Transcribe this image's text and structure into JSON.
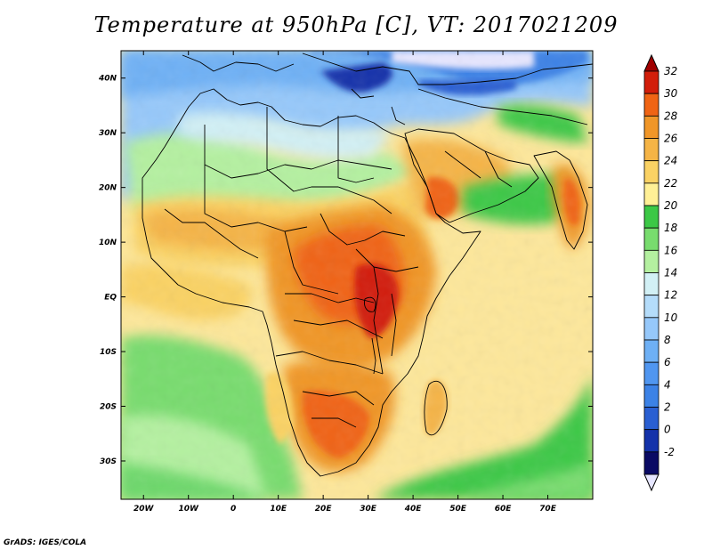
{
  "title": "Temperature at 950hPa [C], VT: 2017021209",
  "credit": "GrADS: IGES/COLA",
  "map": {
    "region": "Africa and Arabian Peninsula",
    "lon_range": [
      -25,
      80
    ],
    "lat_range": [
      -37,
      45
    ],
    "lat_ticks": [
      {
        "value": 40,
        "label": "40N"
      },
      {
        "value": 30,
        "label": "30N"
      },
      {
        "value": 20,
        "label": "20N"
      },
      {
        "value": 10,
        "label": "10N"
      },
      {
        "value": 0,
        "label": "EQ"
      },
      {
        "value": -10,
        "label": "10S"
      },
      {
        "value": -20,
        "label": "20S"
      },
      {
        "value": -30,
        "label": "30S"
      }
    ],
    "lon_ticks": [
      {
        "value": -20,
        "label": "20W"
      },
      {
        "value": -10,
        "label": "10W"
      },
      {
        "value": 0,
        "label": "0"
      },
      {
        "value": 10,
        "label": "10E"
      },
      {
        "value": 20,
        "label": "20E"
      },
      {
        "value": 30,
        "label": "30E"
      },
      {
        "value": 40,
        "label": "40E"
      },
      {
        "value": 50,
        "label": "50E"
      },
      {
        "value": 60,
        "label": "60E"
      },
      {
        "value": 70,
        "label": "70E"
      }
    ]
  },
  "colorbar": {
    "unit": "C",
    "levels": [
      {
        "label": "-2",
        "value": -2,
        "color": "#0a0a64"
      },
      {
        "label": "0",
        "value": 0,
        "color": "#1432aa"
      },
      {
        "label": "2",
        "value": 2,
        "color": "#2a5fd2"
      },
      {
        "label": "4",
        "value": 4,
        "color": "#3c82e6"
      },
      {
        "label": "6",
        "value": 6,
        "color": "#5096f0"
      },
      {
        "label": "8",
        "value": 8,
        "color": "#6eb0f5"
      },
      {
        "label": "10",
        "value": 10,
        "color": "#96c8fa"
      },
      {
        "label": "12",
        "value": 12,
        "color": "#b4dcfa"
      },
      {
        "label": "14",
        "value": 14,
        "color": "#d2f0f5"
      },
      {
        "label": "16",
        "value": 16,
        "color": "#b4f0a0"
      },
      {
        "label": "18",
        "value": 18,
        "color": "#78dc6e"
      },
      {
        "label": "20",
        "value": 20,
        "color": "#3cc846"
      },
      {
        "label": "22",
        "value": 22,
        "color": "#fff096"
      },
      {
        "label": "24",
        "value": 24,
        "color": "#fad264"
      },
      {
        "label": "26",
        "value": 26,
        "color": "#f5b446"
      },
      {
        "label": "28",
        "value": 28,
        "color": "#f09628"
      },
      {
        "label": "30",
        "value": 30,
        "color": "#f06414"
      },
      {
        "label": "32",
        "value": 32,
        "color": "#d21e0a"
      }
    ],
    "under_color": "#e6e6ff",
    "over_color": "#a00000"
  }
}
